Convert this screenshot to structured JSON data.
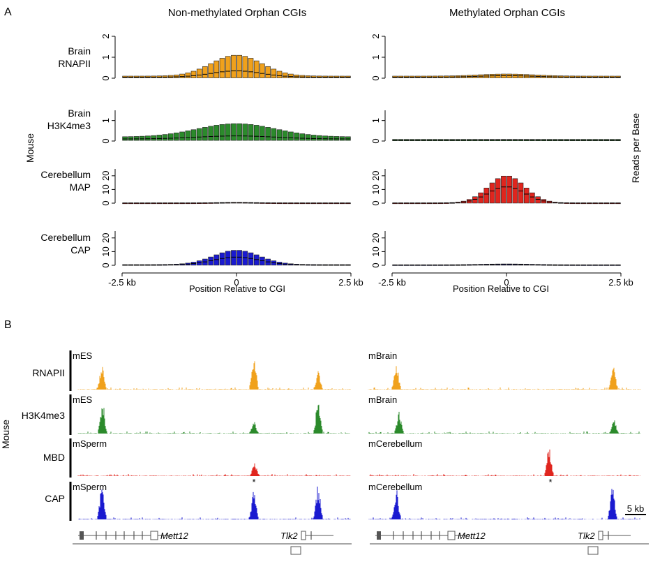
{
  "panel_a": {
    "letter": "A",
    "col_titles": [
      "Non-methylated Orphan CGIs",
      "Methylated Orphan CGIs"
    ],
    "side_label": "Mouse",
    "right_label": "Reads per Base",
    "xlabel": "Position Relative to CGI",
    "x_ticks": [
      "-2.5 kb",
      "0",
      "2.5 kb"
    ],
    "rows": [
      {
        "label1": "Brain",
        "label2": "RNAPII",
        "color": "#f0a11c",
        "yticks": [
          "0",
          "1",
          "2"
        ]
      },
      {
        "label1": "Brain",
        "label2": "H3K4me3",
        "color": "#2b8a2b",
        "yticks": [
          "0",
          "1"
        ]
      },
      {
        "label1": "Cerebellum",
        "label2": "MAP",
        "color": "#e0251e",
        "yticks": [
          "0",
          "10",
          "20"
        ]
      },
      {
        "label1": "Cerebellum",
        "label2": "CAP",
        "color": "#1a1ad0",
        "yticks": [
          "0",
          "10",
          "20"
        ]
      }
    ]
  },
  "chart_data": [
    {
      "type": "bar",
      "title": "Non-methylated Orphan CGIs",
      "ylabel": "Brain RNAPII",
      "ylim": [
        0,
        2
      ],
      "x": [
        -2.5,
        2.5
      ],
      "peak_upper": 1.1,
      "peak_median": 0.35,
      "base_upper": 0.1,
      "width_kb": 0.55
    },
    {
      "type": "bar",
      "title": "Methylated Orphan CGIs",
      "ylabel": "Brain RNAPII",
      "ylim": [
        0,
        2
      ],
      "x": [
        -2.5,
        2.5
      ],
      "peak_upper": 0.2,
      "peak_median": 0.12,
      "base_upper": 0.1,
      "width_kb": 0.6
    },
    {
      "type": "bar",
      "title": "Non-methylated Orphan CGIs",
      "ylabel": "Brain H3K4me3",
      "ylim": [
        0,
        1.5
      ],
      "x": [
        -2.5,
        2.5
      ],
      "peak_upper": 0.85,
      "peak_median": 0.25,
      "base_upper": 0.2,
      "width_kb": 0.85
    },
    {
      "type": "bar",
      "title": "Methylated Orphan CGIs",
      "ylabel": "Brain H3K4me3",
      "ylim": [
        0,
        1.5
      ],
      "x": [
        -2.5,
        2.5
      ],
      "peak_upper": 0.08,
      "peak_median": 0.05,
      "base_upper": 0.08,
      "width_kb": 0.6
    },
    {
      "type": "bar",
      "title": "Non-methylated Orphan CGIs",
      "ylabel": "Cerebellum MAP",
      "ylim": [
        0,
        25
      ],
      "x": [
        -2.5,
        2.5
      ],
      "peak_upper": 0.6,
      "peak_median": 0.3,
      "base_upper": 0.2,
      "width_kb": 0.4
    },
    {
      "type": "bar",
      "title": "Methylated Orphan CGIs",
      "ylabel": "Cerebellum MAP",
      "ylim": [
        0,
        25
      ],
      "x": [
        -2.5,
        2.5
      ],
      "peak_upper": 20,
      "peak_median": 12,
      "base_upper": 0.2,
      "width_kb": 0.4
    },
    {
      "type": "bar",
      "title": "Non-methylated Orphan CGIs",
      "ylabel": "Cerebellum CAP",
      "ylim": [
        0,
        25
      ],
      "x": [
        -2.5,
        2.5
      ],
      "peak_upper": 11,
      "peak_median": 6,
      "base_upper": 0.5,
      "width_kb": 0.5
    },
    {
      "type": "bar",
      "title": "Methylated Orphan CGIs",
      "ylabel": "Cerebellum CAP",
      "ylim": [
        0,
        25
      ],
      "x": [
        -2.5,
        2.5
      ],
      "peak_upper": 1.0,
      "peak_median": 0.6,
      "base_upper": 0.4,
      "width_kb": 0.5
    }
  ],
  "panel_b": {
    "letter": "B",
    "side_label": "Mouse",
    "scale_label": "5 kb",
    "asterisk": "*",
    "row_labels": [
      "RNAPII",
      "H3K4me3",
      "MBD",
      "CAP"
    ],
    "colors": [
      "#f0a11c",
      "#2b8a2b",
      "#e0251e",
      "#1a1ad0"
    ],
    "left_samples": [
      "mES",
      "mES",
      "mSperm",
      "mSperm"
    ],
    "right_samples": [
      "mBrain",
      "mBrain",
      "mCerebellum",
      "mCerebellum"
    ],
    "genes": [
      "Mett12",
      "Tlk2"
    ]
  }
}
